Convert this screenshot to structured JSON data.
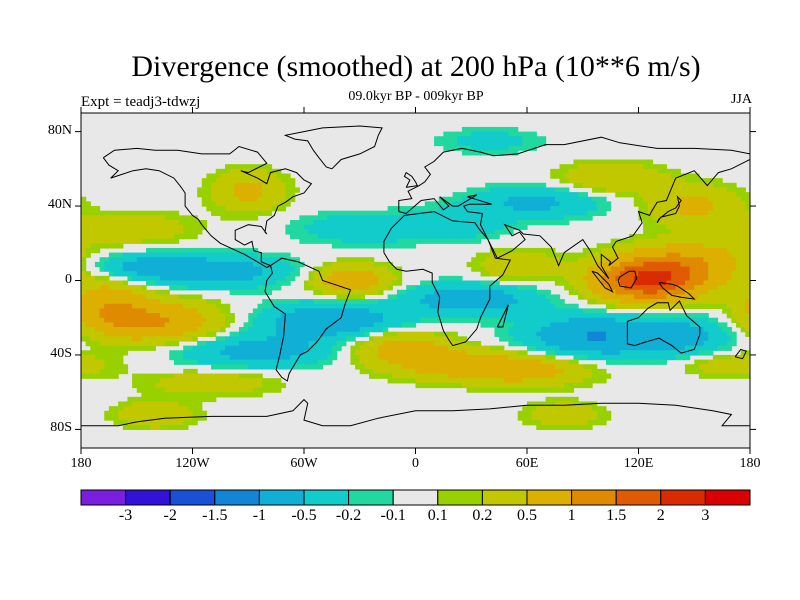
{
  "title": "Divergence (smoothed) at 200 hPa (10**6 m/s)",
  "subtitle": "09.0kyr BP - 009kyr BP",
  "experiment": "Expt = teadj3-tdwzj",
  "season": "JJA",
  "lat_ticks": [
    "80N",
    "40N",
    "0",
    "40S",
    "80S"
  ],
  "lon_ticks": [
    "180",
    "120W",
    "60W",
    "0",
    "60E",
    "120E",
    "180"
  ],
  "colorbar": {
    "labels": [
      "-3",
      "-2",
      "-1.5",
      "-1",
      "-0.5",
      "-0.2",
      "-0.1",
      "0.1",
      "0.2",
      "0.5",
      "1",
      "1.5",
      "2",
      "3"
    ],
    "colors": [
      "#7a1fe0",
      "#3212d8",
      "#1a4fd8",
      "#1185d6",
      "#10afd5",
      "#12cccc",
      "#20d8a0",
      "#e8e8e8",
      "#99d100",
      "#c2c800",
      "#dcb000",
      "#e08a00",
      "#df5a00",
      "#da2a00",
      "#d80000"
    ]
  },
  "map_colors": {
    "background": "#e8e8e8",
    "coast": "#000000"
  },
  "chart_data": {
    "type": "heatmap",
    "title": "Divergence (smoothed) at 200 hPa (10**6 m/s)",
    "variable": "divergence",
    "level_hpa": 200,
    "units": "10**6 m/s",
    "season": "JJA",
    "projection": "cylindrical equidistant",
    "lon_range": [
      -180,
      180
    ],
    "lat_range": [
      -90,
      90
    ],
    "levels": [
      -3,
      -2,
      -1.5,
      -1,
      -0.5,
      -0.2,
      -0.1,
      0.1,
      0.2,
      0.5,
      1,
      1.5,
      2,
      3
    ],
    "features": [
      {
        "lon": 125,
        "lat": 0,
        "value": 2.0,
        "sigma_lon": 20,
        "sigma_lat": 8
      },
      {
        "lon": 150,
        "lat": 10,
        "value": 0.8,
        "sigma_lon": 25,
        "sigma_lat": 8
      },
      {
        "lon": -140,
        "lat": -22,
        "value": 1.0,
        "sigma_lon": 25,
        "sigma_lat": 8
      },
      {
        "lon": -165,
        "lat": -12,
        "value": 0.7,
        "sigma_lon": 15,
        "sigma_lat": 10
      },
      {
        "lon": -110,
        "lat": 5,
        "value": -0.8,
        "sigma_lon": 30,
        "sigma_lat": 6
      },
      {
        "lon": -155,
        "lat": 8,
        "value": -0.5,
        "sigma_lon": 20,
        "sigma_lat": 5
      },
      {
        "lon": -85,
        "lat": -38,
        "value": -0.7,
        "sigma_lon": 30,
        "sigma_lat": 6
      },
      {
        "lon": -35,
        "lat": 0,
        "value": 0.9,
        "sigma_lon": 15,
        "sigma_lat": 6
      },
      {
        "lon": -45,
        "lat": -22,
        "value": -0.9,
        "sigma_lon": 28,
        "sigma_lat": 7
      },
      {
        "lon": -10,
        "lat": -35,
        "value": 0.7,
        "sigma_lon": 20,
        "sigma_lat": 7
      },
      {
        "lon": 30,
        "lat": -10,
        "value": -0.8,
        "sigma_lon": 25,
        "sigma_lat": 6
      },
      {
        "lon": 95,
        "lat": -30,
        "value": -1.0,
        "sigma_lon": 25,
        "sigma_lat": 8
      },
      {
        "lon": 20,
        "lat": -45,
        "value": 0.6,
        "sigma_lon": 25,
        "sigma_lat": 6
      },
      {
        "lon": 60,
        "lat": -48,
        "value": 0.7,
        "sigma_lon": 25,
        "sigma_lat": 6
      },
      {
        "lon": 145,
        "lat": -30,
        "value": -0.6,
        "sigma_lon": 20,
        "sigma_lat": 8
      },
      {
        "lon": 65,
        "lat": 42,
        "value": -0.6,
        "sigma_lon": 25,
        "sigma_lat": 6
      },
      {
        "lon": 20,
        "lat": 30,
        "value": -0.4,
        "sigma_lon": 20,
        "sigma_lat": 6
      },
      {
        "lon": 150,
        "lat": 40,
        "value": 0.6,
        "sigma_lon": 18,
        "sigma_lat": 8
      },
      {
        "lon": 105,
        "lat": 55,
        "value": 0.5,
        "sigma_lon": 20,
        "sigma_lat": 6
      },
      {
        "lon": -90,
        "lat": 48,
        "value": 0.6,
        "sigma_lon": 14,
        "sigma_lat": 8
      },
      {
        "lon": -150,
        "lat": 28,
        "value": 0.4,
        "sigma_lon": 22,
        "sigma_lat": 6
      },
      {
        "lon": -30,
        "lat": 28,
        "value": -0.4,
        "sigma_lon": 25,
        "sigma_lat": 6
      },
      {
        "lon": 55,
        "lat": 8,
        "value": 0.5,
        "sigma_lon": 15,
        "sigma_lat": 6
      },
      {
        "lon": -110,
        "lat": -55,
        "value": 0.4,
        "sigma_lon": 25,
        "sigma_lat": 5
      },
      {
        "lon": 170,
        "lat": -45,
        "value": 0.4,
        "sigma_lon": 20,
        "sigma_lat": 5
      },
      {
        "lon": -140,
        "lat": -72,
        "value": 0.5,
        "sigma_lon": 15,
        "sigma_lat": 5
      },
      {
        "lon": 80,
        "lat": -72,
        "value": 0.4,
        "sigma_lon": 15,
        "sigma_lat": 5
      },
      {
        "lon": 40,
        "lat": 75,
        "value": -0.3,
        "sigma_lon": 20,
        "sigma_lat": 5
      }
    ]
  }
}
